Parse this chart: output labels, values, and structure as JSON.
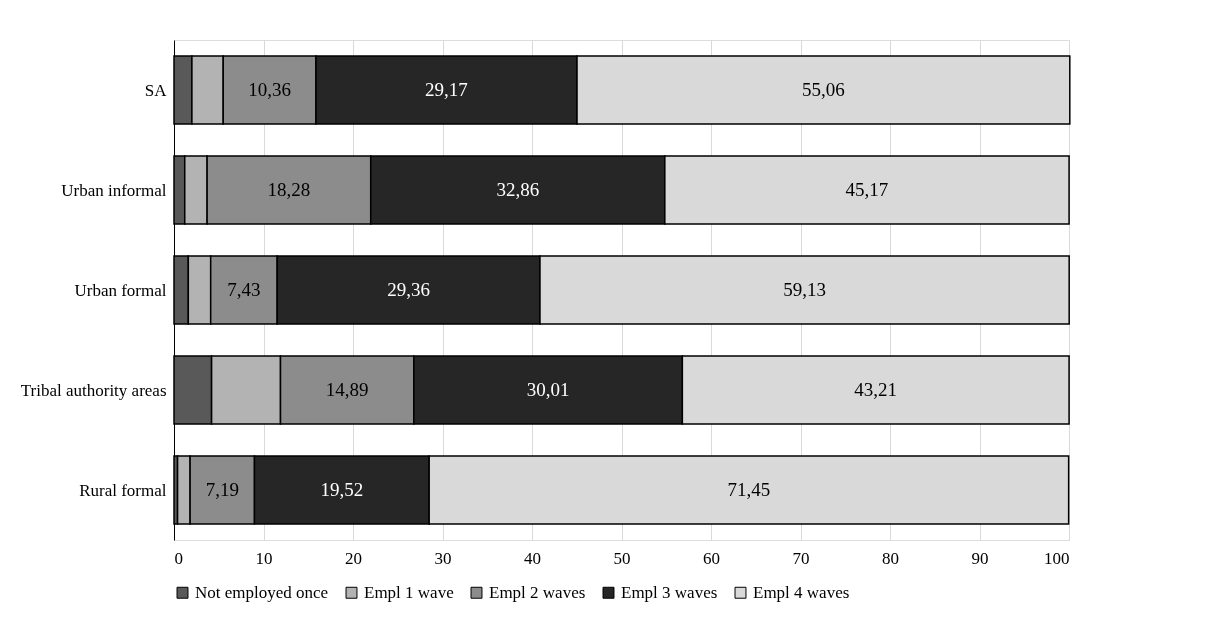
{
  "chart_data": {
    "type": "bar",
    "orientation": "horizontal",
    "stacked": true,
    "categories": [
      "SA",
      "Urban informal",
      "Urban formal",
      "Tribal authority areas",
      "Rural formal"
    ],
    "series": [
      {
        "name": "Not employed once",
        "color": "#595959",
        "values": [
          2.0,
          1.2,
          1.6,
          4.2,
          0.4
        ]
      },
      {
        "name": "Empl 1 wave",
        "color": "#b3b3b3",
        "values": [
          3.5,
          2.5,
          2.5,
          7.7,
          1.4
        ]
      },
      {
        "name": "Empl 2 waves",
        "color": "#8c8c8c",
        "values": [
          10.36,
          18.28,
          7.43,
          14.89,
          7.19
        ],
        "value_labels": [
          "10,36",
          "18,28",
          "7,43",
          "14,89",
          "7,19"
        ]
      },
      {
        "name": "Empl 3 waves",
        "color": "#262626",
        "values": [
          29.17,
          32.86,
          29.36,
          30.01,
          19.52
        ],
        "value_labels": [
          "29,17",
          "32,86",
          "29,36",
          "30,01",
          "19,52"
        ]
      },
      {
        "name": "Empl 4 waves",
        "color": "#d9d9d9",
        "values": [
          55.06,
          45.17,
          59.13,
          43.21,
          71.45
        ],
        "value_labels": [
          "55,06",
          "45,17",
          "59,13",
          "43,21",
          "71,45"
        ]
      }
    ],
    "xlim": [
      0,
      100
    ],
    "xticks": [
      0,
      10,
      20,
      30,
      40,
      50,
      60,
      70,
      80,
      90,
      100
    ],
    "grid": "x",
    "legend": "bottom"
  }
}
